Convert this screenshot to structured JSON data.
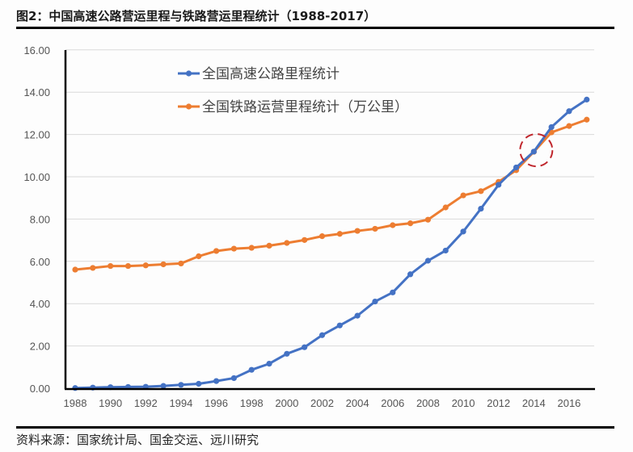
{
  "title": "图2：中国高速公路营运里程与铁路营运里程统计（1988-2017）",
  "source": "资料来源：国家统计局、国金交运、远川研究",
  "chart_data": {
    "type": "line",
    "title": "图2：中国高速公路营运里程与铁路营运里程统计（1988-2017）",
    "xlabel": "",
    "ylabel": "",
    "ylim": [
      0,
      16
    ],
    "xlim": [
      1988,
      2017
    ],
    "grid": true,
    "legend": "top-center",
    "y_ticks": [
      "0.00",
      "2.00",
      "4.00",
      "6.00",
      "8.00",
      "10.00",
      "12.00",
      "14.00",
      "16.00"
    ],
    "x_ticks": [
      "1988",
      "1990",
      "1992",
      "1994",
      "1996",
      "1998",
      "2000",
      "2002",
      "2004",
      "2006",
      "2008",
      "2010",
      "2012",
      "2014",
      "2016"
    ],
    "x": [
      1988,
      1989,
      1990,
      1991,
      1992,
      1993,
      1994,
      1995,
      1996,
      1997,
      1998,
      1999,
      2000,
      2001,
      2002,
      2003,
      2004,
      2005,
      2006,
      2007,
      2008,
      2009,
      2010,
      2011,
      2012,
      2013,
      2014,
      2015,
      2016,
      2017
    ],
    "series": [
      {
        "name": "全国高速公路里程统计",
        "color": "#4472C4",
        "values": [
          0.01,
          0.03,
          0.05,
          0.06,
          0.07,
          0.11,
          0.16,
          0.21,
          0.34,
          0.48,
          0.87,
          1.16,
          1.63,
          1.94,
          2.51,
          2.97,
          3.43,
          4.1,
          4.53,
          5.39,
          6.03,
          6.51,
          7.41,
          8.49,
          9.62,
          10.44,
          11.19,
          12.35,
          13.1,
          13.65
        ]
      },
      {
        "name": "全国铁路运营里程统计（万公里）",
        "color": "#ED7D31",
        "values": [
          5.61,
          5.69,
          5.78,
          5.78,
          5.81,
          5.86,
          5.9,
          6.24,
          6.49,
          6.6,
          6.64,
          6.74,
          6.87,
          7.01,
          7.19,
          7.3,
          7.44,
          7.54,
          7.71,
          7.8,
          7.97,
          8.55,
          9.12,
          9.32,
          9.76,
          10.31,
          11.18,
          12.1,
          12.4,
          12.7
        ]
      }
    ],
    "annotation": {
      "type": "dashed-circle",
      "x": 2014,
      "y": 11.18,
      "color": "#C0272D"
    }
  }
}
